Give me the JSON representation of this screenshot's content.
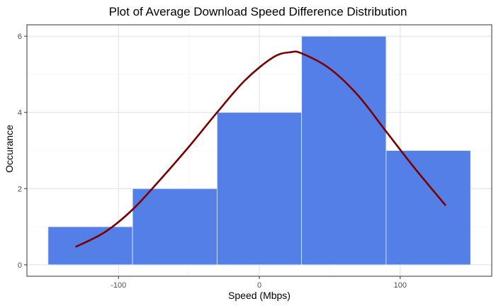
{
  "chart_data": {
    "type": "bar",
    "title": "Plot of Average   Download Speed Difference Distribution",
    "xlabel": "Speed (Mbps)",
    "ylabel": "Occurance",
    "xlim": [
      -165,
      165
    ],
    "ylim": [
      -0.3,
      6.3
    ],
    "x_ticks": [
      -100,
      0,
      100
    ],
    "x_tick_labels": [
      "-100",
      "0",
      "100"
    ],
    "y_ticks": [
      0,
      2,
      4,
      6
    ],
    "y_tick_labels": [
      "0",
      "2",
      "4",
      "6"
    ],
    "grid": true,
    "bins": [
      {
        "x_start": -150,
        "x_end": -90,
        "count": 1
      },
      {
        "x_start": -90,
        "x_end": -30,
        "count": 2
      },
      {
        "x_start": -30,
        "x_end": 30,
        "count": 4
      },
      {
        "x_start": 30,
        "x_end": 90,
        "count": 6
      },
      {
        "x_start": 90,
        "x_end": 150,
        "count": 3
      }
    ],
    "density_curve": {
      "x": [
        -130,
        -110,
        -90,
        -70,
        -50,
        -30,
        -10,
        10,
        22,
        30,
        50,
        70,
        90,
        110,
        132
      ],
      "y": [
        0.48,
        0.85,
        1.45,
        2.25,
        3.1,
        4.0,
        4.85,
        5.45,
        5.58,
        5.55,
        5.15,
        4.45,
        3.5,
        2.55,
        1.57
      ]
    },
    "colors": {
      "bar_fill": "#537FE7",
      "bar_stroke": "#E6EEFF",
      "curve": "#7A0000",
      "grid_major": "#E0E0E0",
      "grid_minor": "#F2F2F2",
      "panel_border": "#333333"
    }
  }
}
